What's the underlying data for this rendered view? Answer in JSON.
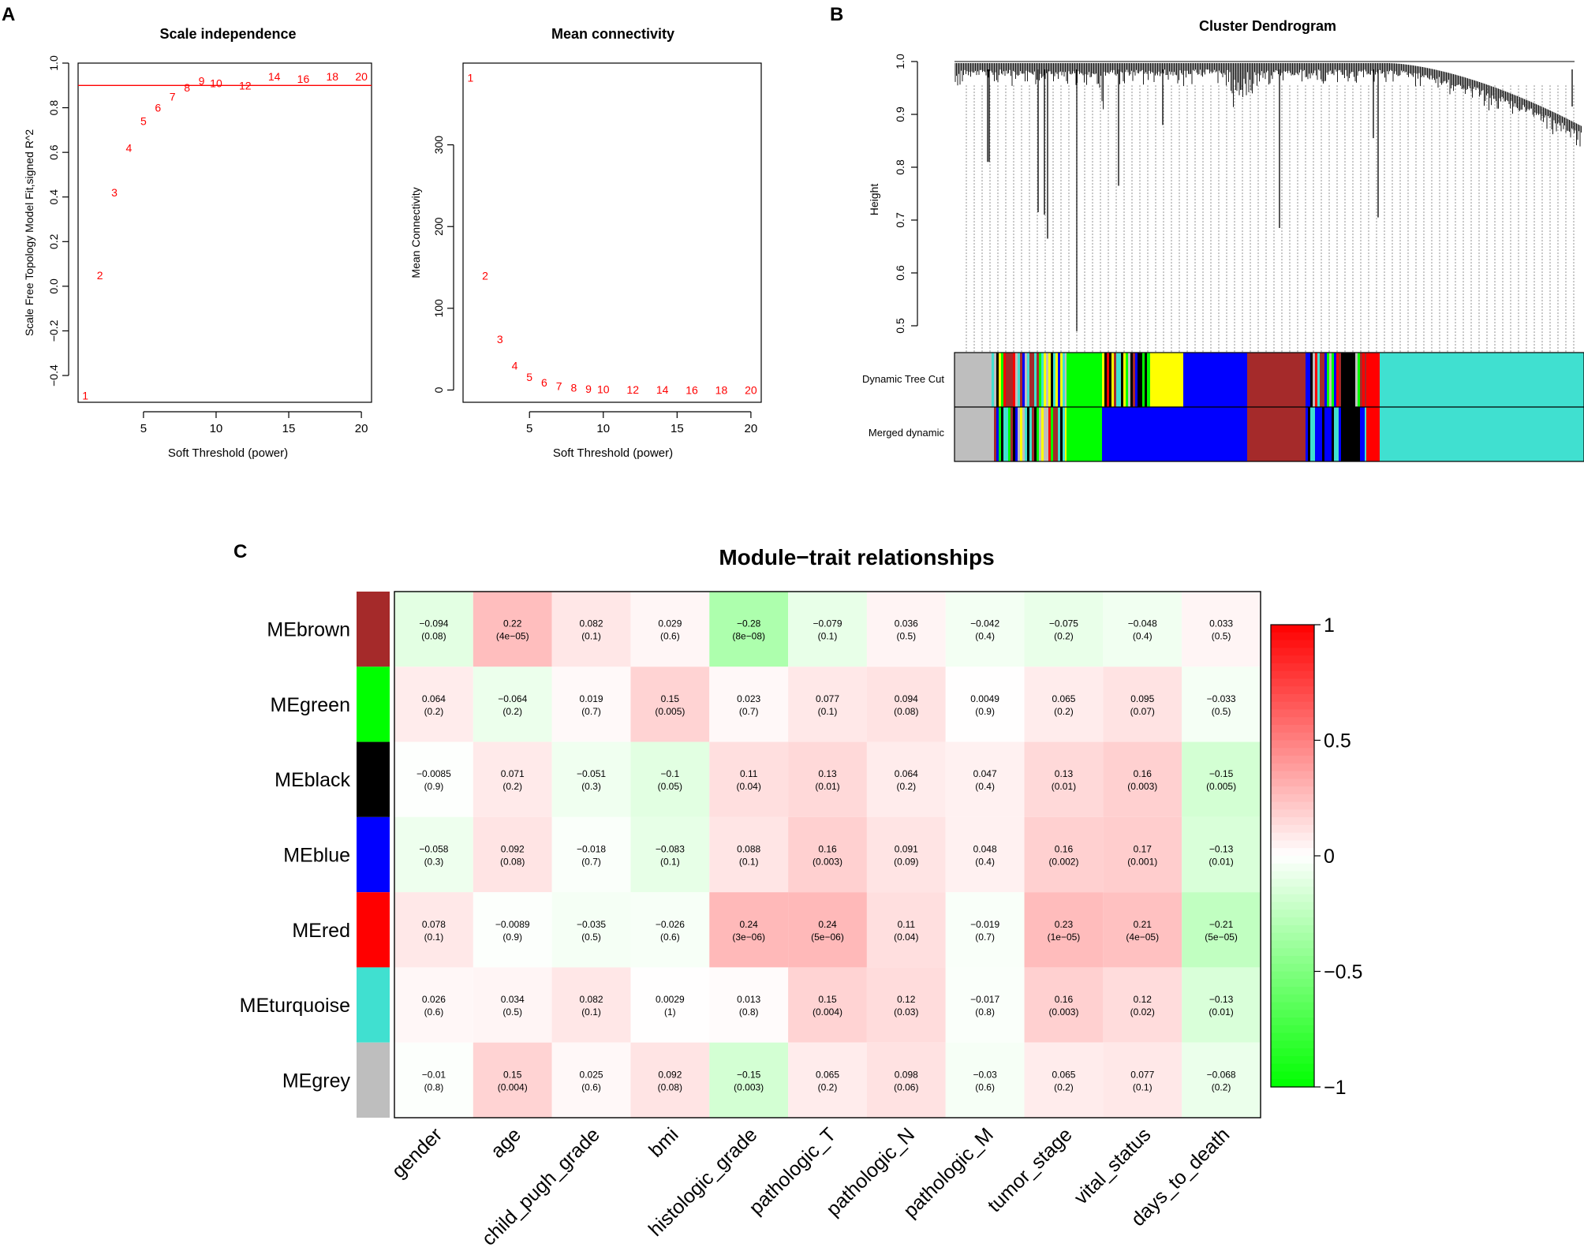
{
  "colors": {
    "fit_points": "#ff0000",
    "threshold_line": "#ff0000",
    "axis": "#000000",
    "cell_text": "#000000",
    "heat_low": "#00ff00",
    "heat_mid": "#ffffff",
    "heat_high": "#ff0000"
  },
  "modules": {
    "brown": "#a52a2a",
    "green": "#00ff00",
    "black": "#000000",
    "blue": "#0000ff",
    "red": "#ff0000",
    "turquoise": "#40e0d0",
    "grey": "#bebebe",
    "yellow": "#ffff00"
  },
  "chart_data": [
    {
      "panel_label": "A",
      "type": "scatter",
      "title": "Scale independence",
      "xlabel": "Soft Threshold (power)",
      "ylabel": "Scale Free Topology Model Fit,signed R^2",
      "xlim": [
        0.5,
        20.7
      ],
      "ylim": [
        -0.52,
        1.0
      ],
      "xticks": [
        5,
        10,
        15,
        20
      ],
      "yticks": [
        -0.4,
        -0.2,
        0.0,
        0.2,
        0.4,
        0.6,
        0.8,
        1.0
      ],
      "ytick_labels": [
        "−0.4",
        "−0.2",
        "0.0",
        "0.2",
        "0.4",
        "0.6",
        "0.8",
        "1.0"
      ],
      "threshold": 0.9,
      "point_labels": [
        "1",
        "2",
        "3",
        "4",
        "5",
        "6",
        "7",
        "8",
        "9",
        "10",
        "12",
        "14",
        "16",
        "18",
        "20"
      ],
      "x": [
        1,
        2,
        3,
        4,
        5,
        6,
        7,
        8,
        9,
        10,
        12,
        14,
        16,
        18,
        20
      ],
      "y": [
        -0.49,
        0.05,
        0.42,
        0.62,
        0.74,
        0.8,
        0.85,
        0.89,
        0.92,
        0.91,
        0.9,
        0.94,
        0.93,
        0.94,
        0.94
      ]
    },
    {
      "type": "scatter",
      "title": "Mean connectivity",
      "xlabel": "Soft Threshold (power)",
      "ylabel": "Mean Connectivity",
      "xlim": [
        0.5,
        20.7
      ],
      "ylim": [
        -15,
        400
      ],
      "xticks": [
        5,
        10,
        15,
        20
      ],
      "yticks": [
        0,
        100,
        200,
        300
      ],
      "point_labels": [
        "1",
        "2",
        "3",
        "4",
        "5",
        "6",
        "7",
        "8",
        "9",
        "10",
        "12",
        "14",
        "16",
        "18",
        "20"
      ],
      "x": [
        1,
        2,
        3,
        4,
        5,
        6,
        7,
        8,
        9,
        10,
        12,
        14,
        16,
        18,
        20
      ],
      "y": [
        382,
        140,
        62,
        30,
        16,
        9,
        5,
        3,
        1.5,
        1,
        0.5,
        0.3,
        0.2,
        0.1,
        0.1
      ]
    },
    {
      "panel_label": "B",
      "type": "dendrogram",
      "title": "Cluster Dendrogram",
      "ylabel": "Height",
      "ylim": [
        0.5,
        1.0
      ],
      "yticks": [
        0.5,
        0.6,
        0.7,
        0.8,
        0.9,
        1.0
      ],
      "rows": [
        "Dynamic Tree Cut",
        "Merged dynamic"
      ]
    },
    {
      "panel_label": "C",
      "type": "heatmap",
      "title": "Module−trait relationships",
      "row_labels": [
        "MEbrown",
        "MEgreen",
        "MEblack",
        "MEblue",
        "MEred",
        "MEturquoise",
        "MEgrey"
      ],
      "row_modules": [
        "brown",
        "green",
        "black",
        "blue",
        "red",
        "turquoise",
        "grey"
      ],
      "col_labels": [
        "gender",
        "age",
        "child_pugh_grade",
        "bmi",
        "histologic_grade",
        "pathologic_T",
        "pathologic_N",
        "pathologic_M",
        "tumor_stage",
        "vital_status",
        "days_to_death"
      ],
      "cor": [
        [
          "−0.094",
          "0.22",
          "0.082",
          "0.029",
          "−0.28",
          "−0.079",
          "0.036",
          "−0.042",
          "−0.075",
          "−0.048",
          "0.033"
        ],
        [
          "0.064",
          "−0.064",
          "0.019",
          "0.15",
          "0.023",
          "0.077",
          "0.094",
          "0.0049",
          "0.065",
          "0.095",
          "−0.033"
        ],
        [
          "−0.0085",
          "0.071",
          "−0.051",
          "−0.1",
          "0.11",
          "0.13",
          "0.064",
          "0.047",
          "0.13",
          "0.16",
          "−0.15"
        ],
        [
          "−0.058",
          "0.092",
          "−0.018",
          "−0.083",
          "0.088",
          "0.16",
          "0.091",
          "0.048",
          "0.16",
          "0.17",
          "−0.13"
        ],
        [
          "0.078",
          "−0.0089",
          "−0.035",
          "−0.026",
          "0.24",
          "0.24",
          "0.11",
          "−0.019",
          "0.23",
          "0.21",
          "−0.21"
        ],
        [
          "0.026",
          "0.034",
          "0.082",
          "0.0029",
          "0.013",
          "0.15",
          "0.12",
          "−0.017",
          "0.16",
          "0.12",
          "−0.13"
        ],
        [
          "−0.01",
          "0.15",
          "0.025",
          "0.092",
          "−0.15",
          "0.065",
          "0.098",
          "−0.03",
          "0.065",
          "0.077",
          "−0.068"
        ]
      ],
      "pval": [
        [
          "(0.08)",
          "(4e−05)",
          "(0.1)",
          "(0.6)",
          "(8e−08)",
          "(0.1)",
          "(0.5)",
          "(0.4)",
          "(0.2)",
          "(0.4)",
          "(0.5)"
        ],
        [
          "(0.2)",
          "(0.2)",
          "(0.7)",
          "(0.005)",
          "(0.7)",
          "(0.1)",
          "(0.08)",
          "(0.9)",
          "(0.2)",
          "(0.07)",
          "(0.5)"
        ],
        [
          "(0.9)",
          "(0.2)",
          "(0.3)",
          "(0.05)",
          "(0.04)",
          "(0.01)",
          "(0.2)",
          "(0.4)",
          "(0.01)",
          "(0.003)",
          "(0.005)"
        ],
        [
          "(0.3)",
          "(0.08)",
          "(0.7)",
          "(0.1)",
          "(0.1)",
          "(0.003)",
          "(0.09)",
          "(0.4)",
          "(0.002)",
          "(0.001)",
          "(0.01)"
        ],
        [
          "(0.1)",
          "(0.9)",
          "(0.5)",
          "(0.6)",
          "(3e−06)",
          "(5e−06)",
          "(0.04)",
          "(0.7)",
          "(1e−05)",
          "(4e−05)",
          "(5e−05)"
        ],
        [
          "(0.6)",
          "(0.5)",
          "(0.1)",
          "(1)",
          "(0.8)",
          "(0.004)",
          "(0.03)",
          "(0.8)",
          "(0.003)",
          "(0.02)",
          "(0.01)"
        ],
        [
          "(0.8)",
          "(0.004)",
          "(0.6)",
          "(0.08)",
          "(0.003)",
          "(0.2)",
          "(0.06)",
          "(0.6)",
          "(0.2)",
          "(0.1)",
          "(0.2)"
        ]
      ],
      "legend_ticks": [
        "1",
        "0.5",
        "0",
        "−0.5",
        "−1"
      ],
      "zlim": [
        -1,
        1
      ]
    }
  ]
}
